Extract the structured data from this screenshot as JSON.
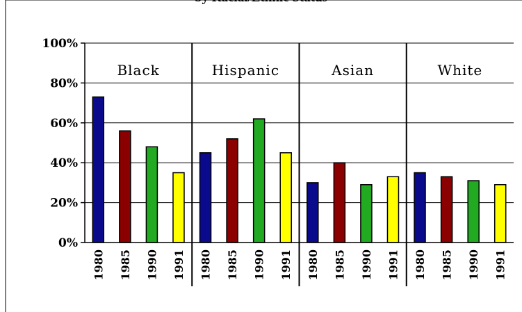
{
  "chart_data": {
    "type": "bar",
    "title": "by Racial/Ethnic Status",
    "xlabel": "",
    "ylabel": "",
    "ylim": [
      0,
      100
    ],
    "yticks": [
      "0%",
      "20%",
      "40%",
      "60%",
      "80%",
      "100%"
    ],
    "ytick_values": [
      0,
      20,
      40,
      60,
      80,
      100
    ],
    "grid": true,
    "groups": [
      {
        "label": "Black",
        "categories": [
          "1980",
          "1985",
          "1990",
          "1991"
        ],
        "values": [
          73,
          56,
          48,
          35
        ]
      },
      {
        "label": "Hispanic",
        "categories": [
          "1980",
          "1985",
          "1990",
          "1991"
        ],
        "values": [
          45,
          52,
          62,
          45
        ]
      },
      {
        "label": "Asian",
        "categories": [
          "1980",
          "1985",
          "1990",
          "1991"
        ],
        "values": [
          30,
          40,
          29,
          33
        ]
      },
      {
        "label": "White",
        "categories": [
          "1980",
          "1985",
          "1990",
          "1991"
        ],
        "values": [
          35,
          33,
          31,
          29
        ]
      }
    ],
    "bar_colors": [
      "#0a0a8c",
      "#8b0000",
      "#22aa22",
      "#ffff00"
    ]
  }
}
